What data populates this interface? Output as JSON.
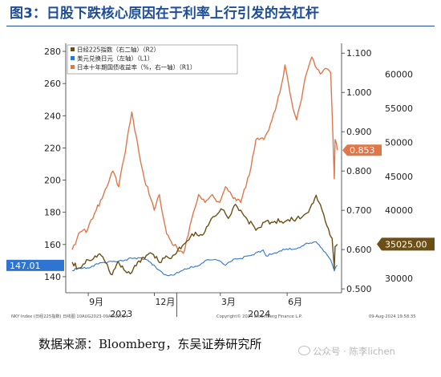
{
  "title": "图3：日股下跌核心原因在于利率上行引发的去杠杆",
  "source": "数据来源：Bloomberg，东吴证券研究所",
  "watermark": "公众号 · 陈李lichen",
  "footer": {
    "left": "NKY Index (日经225指数) 日线图 10AUG2023-09AUG2024",
    "center": "Copyright© 2024 Bloomberg Finance L.P.",
    "right": "09-Aug-2024 19:58:35"
  },
  "colors": {
    "nikkei": "#6b4f14",
    "usdjpy": "#2f74d0",
    "jgb": "#e0774a",
    "title": "#1f4e99",
    "usdjpy_tag": "#2f74d0",
    "jgb_tag": "#e0774a",
    "nikkei_tag": "#6b4f14"
  },
  "chart_data": {
    "type": "line",
    "legend_position": "top-left",
    "grid": false,
    "x_ticks": [
      "9月",
      "12月",
      "3月",
      "6月"
    ],
    "x_years": [
      "2023",
      "2024"
    ],
    "left_axis": {
      "ticks": [
        140,
        160,
        180,
        200,
        220,
        240,
        260,
        280
      ],
      "range": [
        130,
        285
      ]
    },
    "right_axis_1": {
      "ticks": [
        0.5,
        0.6,
        0.7,
        0.8,
        0.9,
        1.0,
        1.1
      ],
      "tick_labels": [
        "0.500",
        "0.600",
        "0.700",
        "0.800",
        "0.900",
        "1.000",
        "1.100"
      ],
      "range": [
        0.49,
        1.125
      ]
    },
    "right_axis_2": {
      "ticks": [
        30000,
        35000,
        40000,
        45000,
        50000,
        55000,
        60000
      ],
      "range": [
        27880,
        64560
      ]
    },
    "series": [
      {
        "name": "日经225指数（右二轴）（R2）",
        "key": "nikkei",
        "axis": "R2",
        "last_value_label": "35025.00",
        "points": [
          [
            "2023-08-10",
            32400
          ],
          [
            "2023-08-18",
            31450
          ],
          [
            "2023-08-25",
            32100
          ],
          [
            "2023-09-01",
            32700
          ],
          [
            "2023-09-15",
            33530
          ],
          [
            "2023-09-25",
            32300
          ],
          [
            "2023-10-04",
            30530
          ],
          [
            "2023-10-12",
            32490
          ],
          [
            "2023-10-20",
            31260
          ],
          [
            "2023-10-31",
            30860
          ],
          [
            "2023-11-10",
            32570
          ],
          [
            "2023-11-20",
            33390
          ],
          [
            "2023-11-30",
            33480
          ],
          [
            "2023-12-08",
            32310
          ],
          [
            "2023-12-15",
            32970
          ],
          [
            "2023-12-29",
            33460
          ],
          [
            "2024-01-11",
            35050
          ],
          [
            "2024-01-22",
            36550
          ],
          [
            "2024-02-05",
            36350
          ],
          [
            "2024-02-15",
            38160
          ],
          [
            "2024-02-22",
            39100
          ],
          [
            "2024-03-04",
            40100
          ],
          [
            "2024-03-12",
            38800
          ],
          [
            "2024-03-22",
            40880
          ],
          [
            "2024-04-05",
            38990
          ],
          [
            "2024-04-19",
            37070
          ],
          [
            "2024-05-01",
            38270
          ],
          [
            "2024-05-15",
            38380
          ],
          [
            "2024-05-31",
            38480
          ],
          [
            "2024-06-14",
            38810
          ],
          [
            "2024-06-28",
            39580
          ],
          [
            "2024-07-05",
            40910
          ],
          [
            "2024-07-11",
            42220
          ],
          [
            "2024-07-19",
            40060
          ],
          [
            "2024-07-26",
            37670
          ],
          [
            "2024-08-01",
            36010
          ],
          [
            "2024-08-02",
            35910
          ],
          [
            "2024-08-05",
            31460
          ],
          [
            "2024-08-06",
            34680
          ],
          [
            "2024-08-08",
            34830
          ],
          [
            "2024-08-09",
            35025
          ]
        ]
      },
      {
        "name": "美元兑换日元（左轴）（L1）",
        "key": "usdjpy",
        "axis": "L1",
        "last_value_label": "147.01",
        "points": [
          [
            "2023-08-10",
            143.8
          ],
          [
            "2023-08-18",
            145.4
          ],
          [
            "2023-08-31",
            145.5
          ],
          [
            "2023-09-15",
            147.9
          ],
          [
            "2023-09-29",
            149.4
          ],
          [
            "2023-10-13",
            149.6
          ],
          [
            "2023-10-31",
            151.4
          ],
          [
            "2023-11-13",
            151.7
          ],
          [
            "2023-11-24",
            149.4
          ],
          [
            "2023-12-07",
            144.2
          ],
          [
            "2023-12-14",
            141.4
          ],
          [
            "2023-12-28",
            141.0
          ],
          [
            "2024-01-12",
            144.9
          ],
          [
            "2024-01-31",
            146.9
          ],
          [
            "2024-02-13",
            150.6
          ],
          [
            "2024-02-29",
            149.9
          ],
          [
            "2024-03-08",
            147.1
          ],
          [
            "2024-03-19",
            150.9
          ],
          [
            "2024-03-29",
            151.4
          ],
          [
            "2024-04-12",
            153.2
          ],
          [
            "2024-04-29",
            156.6
          ],
          [
            "2024-05-03",
            152.9
          ],
          [
            "2024-05-15",
            154.8
          ],
          [
            "2024-05-31",
            157.3
          ],
          [
            "2024-06-14",
            157.4
          ],
          [
            "2024-06-28",
            160.9
          ],
          [
            "2024-07-05",
            160.8
          ],
          [
            "2024-07-11",
            161.7
          ],
          [
            "2024-07-19",
            157.6
          ],
          [
            "2024-07-31",
            150.5
          ],
          [
            "2024-08-05",
            143.6
          ],
          [
            "2024-08-07",
            146.2
          ],
          [
            "2024-08-09",
            147.01
          ]
        ]
      },
      {
        "name": "日本十年期国债收益率（%，右一轴）（R1）",
        "key": "jgb",
        "axis": "R1",
        "last_value_label": "0.853",
        "points": [
          [
            "2023-08-10",
            0.6
          ],
          [
            "2023-08-21",
            0.645
          ],
          [
            "2023-08-31",
            0.65
          ],
          [
            "2023-09-12",
            0.7
          ],
          [
            "2023-09-22",
            0.74
          ],
          [
            "2023-09-29",
            0.77
          ],
          [
            "2023-10-05",
            0.8
          ],
          [
            "2023-10-13",
            0.76
          ],
          [
            "2023-10-20",
            0.83
          ],
          [
            "2023-10-31",
            0.95
          ],
          [
            "2023-11-06",
            0.89
          ],
          [
            "2023-11-15",
            0.8
          ],
          [
            "2023-11-24",
            0.74
          ],
          [
            "2023-12-01",
            0.7
          ],
          [
            "2023-12-08",
            0.74
          ],
          [
            "2023-12-18",
            0.64
          ],
          [
            "2023-12-28",
            0.61
          ],
          [
            "2024-01-10",
            0.59
          ],
          [
            "2024-01-19",
            0.66
          ],
          [
            "2024-01-31",
            0.74
          ],
          [
            "2024-02-09",
            0.72
          ],
          [
            "2024-02-19",
            0.74
          ],
          [
            "2024-02-29",
            0.72
          ],
          [
            "2024-03-08",
            0.76
          ],
          [
            "2024-03-19",
            0.73
          ],
          [
            "2024-03-29",
            0.72
          ],
          [
            "2024-04-10",
            0.79
          ],
          [
            "2024-04-19",
            0.88
          ],
          [
            "2024-04-30",
            0.88
          ],
          [
            "2024-05-09",
            0.92
          ],
          [
            "2024-05-22",
            1.0
          ],
          [
            "2024-05-29",
            1.07
          ],
          [
            "2024-06-07",
            0.98
          ],
          [
            "2024-06-14",
            0.93
          ],
          [
            "2024-06-28",
            1.05
          ],
          [
            "2024-07-05",
            1.09
          ],
          [
            "2024-07-12",
            1.06
          ],
          [
            "2024-07-19",
            1.05
          ],
          [
            "2024-07-26",
            1.06
          ],
          [
            "2024-07-31",
            1.05
          ],
          [
            "2024-08-02",
            0.95
          ],
          [
            "2024-08-05",
            0.78
          ],
          [
            "2024-08-06",
            0.88
          ],
          [
            "2024-08-08",
            0.87
          ],
          [
            "2024-08-09",
            0.853
          ]
        ]
      }
    ]
  }
}
